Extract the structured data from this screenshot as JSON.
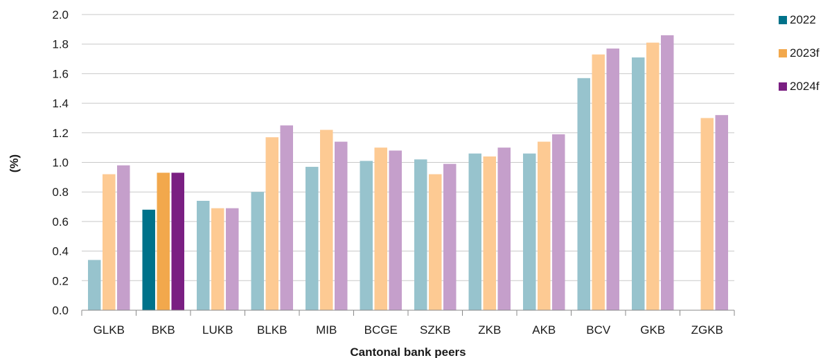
{
  "chart_data": {
    "type": "bar",
    "title": "",
    "xlabel": "Cantonal bank peers",
    "ylabel": "(%)",
    "ylim": [
      0,
      2.0
    ],
    "yticks": [
      "0.0",
      "0.2",
      "0.4",
      "0.6",
      "0.8",
      "1.0",
      "1.2",
      "1.4",
      "1.6",
      "1.8",
      "2.0"
    ],
    "grid": true,
    "legend_position": "top-right",
    "categories": [
      "GLKB",
      "BKB",
      "LUKB",
      "BLKB",
      "MIB",
      "BCGE",
      "SZKB",
      "ZKB",
      "AKB",
      "BCV",
      "GKB",
      "ZGKB"
    ],
    "highlight_category": "BKB",
    "series": [
      {
        "name": "2022",
        "color": "#00728a",
        "muted_color": "#97c3cd",
        "values": [
          0.34,
          0.68,
          0.74,
          0.8,
          0.97,
          1.01,
          1.02,
          1.06,
          1.06,
          1.57,
          1.71,
          null
        ]
      },
      {
        "name": "2023f",
        "color": "#f2a84c",
        "muted_color": "#fdca93",
        "values": [
          0.92,
          0.93,
          0.69,
          1.17,
          1.22,
          1.1,
          0.92,
          1.04,
          1.14,
          1.73,
          1.81,
          1.3
        ]
      },
      {
        "name": "2024f",
        "color": "#7a1f82",
        "muted_color": "#c59fcb",
        "values": [
          0.98,
          0.93,
          0.69,
          1.25,
          1.14,
          1.08,
          0.99,
          1.1,
          1.19,
          1.77,
          1.86,
          1.32
        ]
      }
    ]
  }
}
